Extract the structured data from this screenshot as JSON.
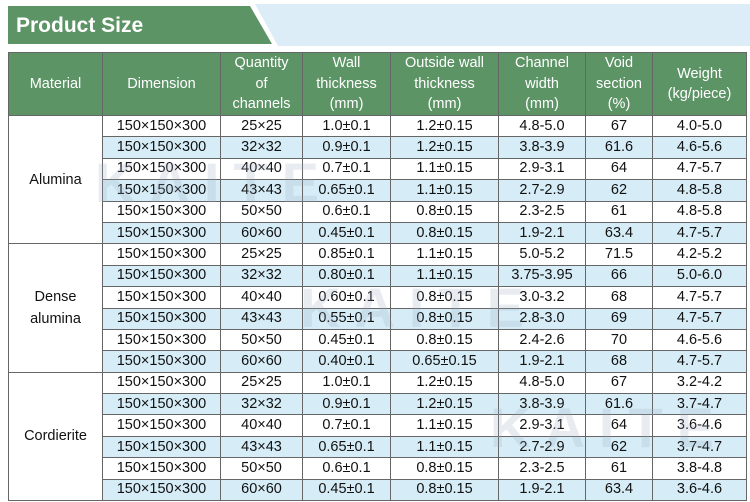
{
  "header": {
    "title": "Product Size"
  },
  "watermark": "KAITE",
  "table": {
    "columns": [
      "Material",
      "Dimension",
      "Quantity\nof\nchannels",
      "Wall\nthickness\n(mm)",
      "Outside wall\nthickness\n(mm)",
      "Channel\nwidth\n(mm)",
      "Void\nsection\n(%)",
      "Weight\n(kg/piece)"
    ],
    "groups": [
      {
        "material": "Alumina",
        "rows": [
          [
            "150×150×300",
            "25×25",
            "1.0±0.1",
            "1.2±0.15",
            "4.8-5.0",
            "67",
            "4.0-5.0"
          ],
          [
            "150×150×300",
            "32×32",
            "0.9±0.1",
            "1.2±0.15",
            "3.8-3.9",
            "61.6",
            "4.6-5.6"
          ],
          [
            "150×150×300",
            "40×40",
            "0.7±0.1",
            "1.1±0.15",
            "2.9-3.1",
            "64",
            "4.7-5.7"
          ],
          [
            "150×150×300",
            "43×43",
            "0.65±0.1",
            "1.1±0.15",
            "2.7-2.9",
            "62",
            "4.8-5.8"
          ],
          [
            "150×150×300",
            "50×50",
            "0.6±0.1",
            "0.8±0.15",
            "2.3-2.5",
            "61",
            "4.8-5.8"
          ],
          [
            "150×150×300",
            "60×60",
            "0.45±0.1",
            "0.8±0.15",
            "1.9-2.1",
            "63.4",
            "4.7-5.7"
          ]
        ]
      },
      {
        "material": "Dense\nalumina",
        "rows": [
          [
            "150×150×300",
            "25×25",
            "0.85±0.1",
            "1.1±0.15",
            "5.0-5.2",
            "71.5",
            "4.2-5.2"
          ],
          [
            "150×150×300",
            "32×32",
            "0.80±0.1",
            "1.1±0.15",
            "3.75-3.95",
            "66",
            "5.0-6.0"
          ],
          [
            "150×150×300",
            "40×40",
            "0.60±0.1",
            "0.8±0.15",
            "3.0-3.2",
            "68",
            "4.7-5.7"
          ],
          [
            "150×150×300",
            "43×43",
            "0.55±0.1",
            "0.8±0.15",
            "2.8-3.0",
            "69",
            "4.7-5.7"
          ],
          [
            "150×150×300",
            "50×50",
            "0.45±0.1",
            "0.8±0.15",
            "2.4-2.6",
            "70",
            "4.6-5.6"
          ],
          [
            "150×150×300",
            "60×60",
            "0.40±0.1",
            "0.65±0.15",
            "1.9-2.1",
            "68",
            "4.7-5.7"
          ]
        ]
      },
      {
        "material": "Cordierite",
        "rows": [
          [
            "150×150×300",
            "25×25",
            "1.0±0.1",
            "1.2±0.15",
            "4.8-5.0",
            "67",
            "3.2-4.2"
          ],
          [
            "150×150×300",
            "32×32",
            "0.9±0.1",
            "1.2±0.15",
            "3.8-3.9",
            "61.6",
            "3.7-4.7"
          ],
          [
            "150×150×300",
            "40×40",
            "0.7±0.1",
            "1.1±0.15",
            "2.9-3.1",
            "64",
            "3.6-4.6"
          ],
          [
            "150×150×300",
            "43×43",
            "0.65±0.1",
            "1.1±0.15",
            "2.7-2.9",
            "62",
            "3.7-4.7"
          ],
          [
            "150×150×300",
            "50×50",
            "0.6±0.1",
            "0.8±0.15",
            "2.3-2.5",
            "61",
            "3.8-4.8"
          ],
          [
            "150×150×300",
            "60×60",
            "0.45±0.1",
            "0.8±0.15",
            "1.9-2.1",
            "63.4",
            "3.6-4.6"
          ]
        ]
      }
    ]
  }
}
